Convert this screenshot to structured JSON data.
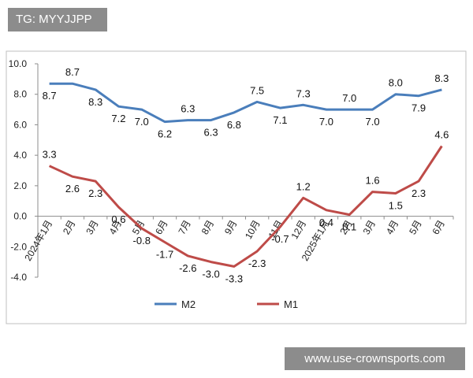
{
  "watermarks": {
    "top": "TG: MYYJJPP",
    "bottom": "www.use-crownsports.com"
  },
  "chart_data": {
    "type": "line",
    "categories": [
      "2024年1月",
      "2月",
      "3月",
      "4月",
      "5月",
      "6月",
      "7月",
      "8月",
      "9月",
      "10月",
      "11月",
      "12月",
      "2025年1月",
      "2月",
      "3月",
      "4月",
      "5月",
      "6月"
    ],
    "series": [
      {
        "name": "M2",
        "color": "#4a7ebb",
        "values": [
          8.7,
          8.7,
          8.3,
          7.2,
          7.0,
          6.2,
          6.3,
          6.3,
          6.8,
          7.5,
          7.1,
          7.3,
          7.0,
          7.0,
          7.0,
          8.0,
          7.9,
          8.3
        ]
      },
      {
        "name": "M1",
        "color": "#be4b48",
        "values": [
          3.3,
          2.6,
          2.3,
          0.6,
          -0.8,
          -1.7,
          -2.6,
          -3.0,
          -3.3,
          -2.3,
          -0.7,
          1.2,
          0.4,
          0.1,
          1.6,
          1.5,
          2.3,
          4.6
        ]
      }
    ],
    "yticks": [
      "10.0",
      "8.0",
      "6.0",
      "4.0",
      "2.0",
      "0.0",
      "-2.0",
      "-4.0"
    ],
    "ylim": [
      -4,
      10
    ],
    "ystep": 2,
    "grid": false,
    "legend_position": "bottom"
  }
}
